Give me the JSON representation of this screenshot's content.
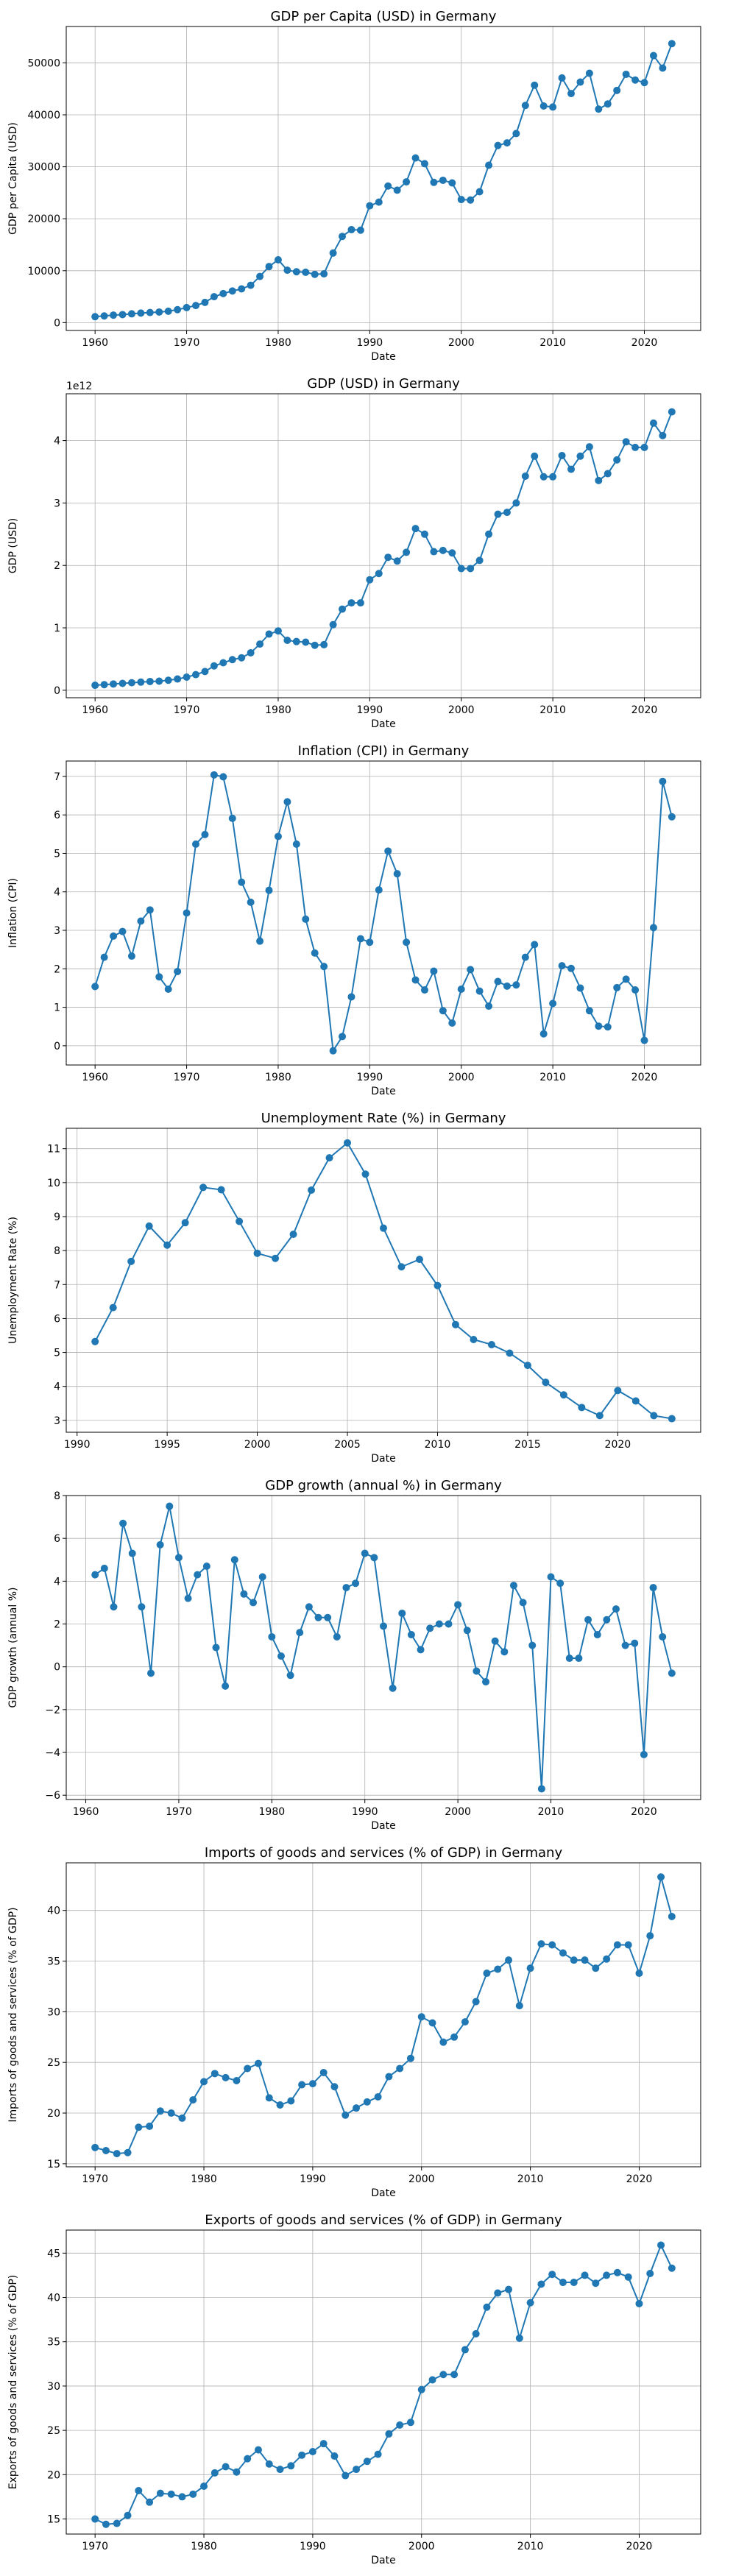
{
  "colors": {
    "series": "#1f77b4"
  },
  "chart_data": [
    {
      "type": "line",
      "title": "GDP per Capita (USD) in Germany",
      "xlabel": "Date",
      "ylabel": "GDP per Capita (USD)",
      "grid": true,
      "xlim": [
        1956.85,
        2026.15
      ],
      "ylim": [
        -1500,
        57000
      ],
      "xticks": [
        "1960",
        "1970",
        "1980",
        "1990",
        "2000",
        "2010",
        "2020"
      ],
      "yticks": [
        "0",
        "10000",
        "20000",
        "30000",
        "40000",
        "50000"
      ],
      "x": [
        1960,
        1961,
        1962,
        1963,
        1964,
        1965,
        1966,
        1967,
        1968,
        1969,
        1970,
        1971,
        1972,
        1973,
        1974,
        1975,
        1976,
        1977,
        1978,
        1979,
        1980,
        1981,
        1982,
        1983,
        1984,
        1985,
        1986,
        1987,
        1988,
        1989,
        1990,
        1991,
        1992,
        1993,
        1994,
        1995,
        1996,
        1997,
        1998,
        1999,
        2000,
        2001,
        2002,
        2003,
        2004,
        2005,
        2006,
        2007,
        2008,
        2009,
        2010,
        2011,
        2012,
        2013,
        2014,
        2015,
        2016,
        2017,
        2018,
        2019,
        2020,
        2021,
        2022,
        2023
      ],
      "series": [
        {
          "values": [
            1150,
            1300,
            1450,
            1550,
            1700,
            1850,
            1950,
            2050,
            2200,
            2500,
            2900,
            3300,
            3900,
            5000,
            5600,
            6100,
            6500,
            7200,
            8900,
            10800,
            12100,
            10100,
            9800,
            9700,
            9300,
            9400,
            13400,
            16600,
            17900,
            17800,
            22500,
            23200,
            26300,
            25500,
            27100,
            31700,
            30600,
            27000,
            27400,
            26900,
            23700,
            23600,
            25200,
            30300,
            34100,
            34600,
            36400,
            41800,
            45700,
            41700,
            41500,
            47100,
            44100,
            46300,
            48000,
            41100,
            42100,
            44700,
            47800,
            46700,
            46200,
            51400,
            49000,
            53700
          ]
        }
      ]
    },
    {
      "type": "line",
      "title": "GDP (USD) in Germany",
      "xlabel": "Date",
      "ylabel": "GDP (USD)",
      "exponent_label": "1e12",
      "grid": true,
      "xlim": [
        1956.85,
        2026.15
      ],
      "ylim": [
        -0.12,
        4.75
      ],
      "xticks": [
        "1960",
        "1970",
        "1980",
        "1990",
        "2000",
        "2010",
        "2020"
      ],
      "yticks": [
        "0",
        "1",
        "2",
        "3",
        "4"
      ],
      "x": [
        1960,
        1961,
        1962,
        1963,
        1964,
        1965,
        1966,
        1967,
        1968,
        1969,
        1970,
        1971,
        1972,
        1973,
        1974,
        1975,
        1976,
        1977,
        1978,
        1979,
        1980,
        1981,
        1982,
        1983,
        1984,
        1985,
        1986,
        1987,
        1988,
        1989,
        1990,
        1991,
        1992,
        1993,
        1994,
        1995,
        1996,
        1997,
        1998,
        1999,
        2000,
        2001,
        2002,
        2003,
        2004,
        2005,
        2006,
        2007,
        2008,
        2009,
        2010,
        2011,
        2012,
        2013,
        2014,
        2015,
        2016,
        2017,
        2018,
        2019,
        2020,
        2021,
        2022,
        2023
      ],
      "series": [
        {
          "values": [
            0.08,
            0.09,
            0.1,
            0.11,
            0.12,
            0.13,
            0.14,
            0.145,
            0.16,
            0.18,
            0.21,
            0.25,
            0.3,
            0.39,
            0.44,
            0.49,
            0.52,
            0.6,
            0.74,
            0.9,
            0.95,
            0.8,
            0.78,
            0.77,
            0.72,
            0.73,
            1.05,
            1.3,
            1.4,
            1.4,
            1.77,
            1.87,
            2.13,
            2.07,
            2.21,
            2.59,
            2.5,
            2.22,
            2.24,
            2.2,
            1.95,
            1.95,
            2.08,
            2.5,
            2.82,
            2.85,
            3.0,
            3.43,
            3.75,
            3.42,
            3.42,
            3.76,
            3.54,
            3.75,
            3.9,
            3.36,
            3.47,
            3.69,
            3.98,
            3.89,
            3.89,
            4.28,
            4.08,
            4.46
          ]
        }
      ]
    },
    {
      "type": "line",
      "title": "Inflation (CPI) in Germany",
      "xlabel": "Date",
      "ylabel": "Inflation (CPI)",
      "grid": true,
      "xlim": [
        1956.85,
        2026.15
      ],
      "ylim": [
        -0.5,
        7.4
      ],
      "xticks": [
        "1960",
        "1970",
        "1980",
        "1990",
        "2000",
        "2010",
        "2020"
      ],
      "yticks": [
        "0",
        "1",
        "2",
        "3",
        "4",
        "5",
        "6",
        "7"
      ],
      "x": [
        1960,
        1961,
        1962,
        1963,
        1964,
        1965,
        1966,
        1967,
        1968,
        1969,
        1970,
        1971,
        1972,
        1973,
        1974,
        1975,
        1976,
        1977,
        1978,
        1979,
        1980,
        1981,
        1982,
        1983,
        1984,
        1985,
        1986,
        1987,
        1988,
        1989,
        1990,
        1991,
        1992,
        1993,
        1994,
        1995,
        1996,
        1997,
        1998,
        1999,
        2000,
        2001,
        2002,
        2003,
        2004,
        2005,
        2006,
        2007,
        2008,
        2009,
        2010,
        2011,
        2012,
        2013,
        2014,
        2015,
        2016,
        2017,
        2018,
        2019,
        2020,
        2021,
        2022,
        2023
      ],
      "series": [
        {
          "values": [
            1.54,
            2.3,
            2.85,
            2.97,
            2.33,
            3.24,
            3.53,
            1.79,
            1.47,
            1.93,
            3.45,
            5.24,
            5.49,
            7.04,
            6.99,
            5.91,
            4.25,
            3.73,
            2.72,
            4.04,
            5.44,
            6.34,
            5.24,
            3.29,
            2.41,
            2.06,
            -0.13,
            0.24,
            1.27,
            2.78,
            2.69,
            4.05,
            5.06,
            4.47,
            2.69,
            1.71,
            1.45,
            1.94,
            0.91,
            0.59,
            1.47,
            1.98,
            1.42,
            1.03,
            1.67,
            1.55,
            1.58,
            2.3,
            2.63,
            0.31,
            1.1,
            2.08,
            2.01,
            1.5,
            0.91,
            0.51,
            0.49,
            1.51,
            1.73,
            1.45,
            0.14,
            3.07,
            6.87,
            5.95
          ]
        }
      ]
    },
    {
      "type": "line",
      "title": "Unemployment Rate (%) in Germany",
      "xlabel": "Date",
      "ylabel": "Unemployment Rate (%)",
      "grid": true,
      "xlim": [
        1989.4,
        2024.6
      ],
      "ylim": [
        2.65,
        11.6
      ],
      "xticks": [
        "1990",
        "1995",
        "2000",
        "2005",
        "2010",
        "2015",
        "2020"
      ],
      "yticks": [
        "3",
        "4",
        "5",
        "6",
        "7",
        "8",
        "9",
        "10",
        "11"
      ],
      "x": [
        1991,
        1992,
        1993,
        1994,
        1995,
        1996,
        1997,
        1998,
        1999,
        2000,
        2001,
        2002,
        2003,
        2004,
        2005,
        2006,
        2007,
        2008,
        2009,
        2010,
        2011,
        2012,
        2013,
        2014,
        2015,
        2016,
        2017,
        2018,
        2019,
        2020,
        2021,
        2022,
        2023
      ],
      "series": [
        {
          "values": [
            5.32,
            6.32,
            7.68,
            8.72,
            8.16,
            8.82,
            9.86,
            9.79,
            8.86,
            7.92,
            7.77,
            8.48,
            9.78,
            10.73,
            11.17,
            10.25,
            8.66,
            7.52,
            7.74,
            6.97,
            5.82,
            5.38,
            5.23,
            4.98,
            4.62,
            4.12,
            3.75,
            3.38,
            3.14,
            3.88,
            3.57,
            3.14,
            3.05
          ]
        }
      ]
    },
    {
      "type": "line",
      "title": "GDP growth (annual %) in Germany",
      "xlabel": "Date",
      "ylabel": "GDP growth (annual %)",
      "grid": true,
      "xlim": [
        1957.9,
        2026.1
      ],
      "ylim": [
        -6.2,
        8.0
      ],
      "xticks": [
        "1960",
        "1970",
        "1980",
        "1990",
        "2000",
        "2010",
        "2020"
      ],
      "yticks": [
        "−6",
        "−4",
        "−2",
        "0",
        "2",
        "4",
        "6",
        "8"
      ],
      "x": [
        1961,
        1962,
        1963,
        1964,
        1965,
        1966,
        1967,
        1968,
        1969,
        1970,
        1971,
        1972,
        1973,
        1974,
        1975,
        1976,
        1977,
        1978,
        1979,
        1980,
        1981,
        1982,
        1983,
        1984,
        1985,
        1986,
        1987,
        1988,
        1989,
        1990,
        1991,
        1992,
        1993,
        1994,
        1995,
        1996,
        1997,
        1998,
        1999,
        2000,
        2001,
        2002,
        2003,
        2004,
        2005,
        2006,
        2007,
        2008,
        2009,
        2010,
        2011,
        2012,
        2013,
        2014,
        2015,
        2016,
        2017,
        2018,
        2019,
        2020,
        2021,
        2022,
        2023
      ],
      "series": [
        {
          "values": [
            4.3,
            4.6,
            2.8,
            6.7,
            5.3,
            2.8,
            -0.3,
            5.7,
            7.5,
            5.1,
            3.2,
            4.3,
            4.7,
            0.9,
            -0.9,
            5.0,
            3.4,
            3.0,
            4.2,
            1.4,
            0.5,
            -0.4,
            1.6,
            2.8,
            2.3,
            2.3,
            1.4,
            3.7,
            3.9,
            5.3,
            5.1,
            1.9,
            -1.0,
            2.5,
            1.5,
            0.8,
            1.8,
            2.0,
            2.0,
            2.9,
            1.7,
            -0.2,
            -0.7,
            1.2,
            0.7,
            3.8,
            3.0,
            1.0,
            -5.7,
            4.2,
            3.9,
            0.4,
            0.4,
            2.2,
            1.5,
            2.2,
            2.7,
            1.0,
            1.1,
            -4.1,
            3.7,
            1.4,
            -0.3
          ]
        }
      ]
    },
    {
      "type": "line",
      "title": "Imports of goods and services (% of GDP) in Germany",
      "xlabel": "Date",
      "ylabel": "Imports of goods and services (% of GDP)",
      "grid": true,
      "xlim": [
        1967.35,
        2025.65
      ],
      "ylim": [
        14.7,
        44.7
      ],
      "xticks": [
        "1970",
        "1980",
        "1990",
        "2000",
        "2010",
        "2020"
      ],
      "yticks": [
        "15",
        "20",
        "25",
        "30",
        "35",
        "40"
      ],
      "x": [
        1970,
        1971,
        1972,
        1973,
        1974,
        1975,
        1976,
        1977,
        1978,
        1979,
        1980,
        1981,
        1982,
        1983,
        1984,
        1985,
        1986,
        1987,
        1988,
        1989,
        1990,
        1991,
        1992,
        1993,
        1994,
        1995,
        1996,
        1997,
        1998,
        1999,
        2000,
        2001,
        2002,
        2003,
        2004,
        2005,
        2006,
        2007,
        2008,
        2009,
        2010,
        2011,
        2012,
        2013,
        2014,
        2015,
        2016,
        2017,
        2018,
        2019,
        2020,
        2021,
        2022,
        2023
      ],
      "series": [
        {
          "values": [
            16.6,
            16.3,
            16.0,
            16.1,
            18.6,
            18.7,
            20.2,
            20.0,
            19.5,
            21.3,
            23.1,
            23.9,
            23.5,
            23.2,
            24.4,
            24.9,
            21.5,
            20.8,
            21.2,
            22.8,
            22.9,
            24.0,
            22.6,
            19.8,
            20.5,
            21.1,
            21.6,
            23.6,
            24.4,
            25.4,
            29.5,
            28.9,
            27.0,
            27.5,
            29.0,
            31.0,
            33.8,
            34.2,
            35.1,
            30.6,
            34.3,
            36.7,
            36.6,
            35.8,
            35.1,
            35.1,
            34.3,
            35.2,
            36.6,
            36.6,
            33.8,
            37.5,
            43.3,
            39.4
          ]
        }
      ]
    },
    {
      "type": "line",
      "title": "Exports of goods and services (% of GDP) in Germany",
      "xlabel": "Date",
      "ylabel": "Exports of goods and services (% of GDP)",
      "grid": true,
      "xlim": [
        1967.35,
        2025.65
      ],
      "ylim": [
        13.3,
        47.6
      ],
      "xticks": [
        "1970",
        "1980",
        "1990",
        "2000",
        "2010",
        "2020"
      ],
      "yticks": [
        "15",
        "20",
        "25",
        "30",
        "35",
        "40",
        "45"
      ],
      "x": [
        1970,
        1971,
        1972,
        1973,
        1974,
        1975,
        1976,
        1977,
        1978,
        1979,
        1980,
        1981,
        1982,
        1983,
        1984,
        1985,
        1986,
        1987,
        1988,
        1989,
        1990,
        1991,
        1992,
        1993,
        1994,
        1995,
        1996,
        1997,
        1998,
        1999,
        2000,
        2001,
        2002,
        2003,
        2004,
        2005,
        2006,
        2007,
        2008,
        2009,
        2010,
        2011,
        2012,
        2013,
        2014,
        2015,
        2016,
        2017,
        2018,
        2019,
        2020,
        2021,
        2022,
        2023
      ],
      "series": [
        {
          "values": [
            15.0,
            14.4,
            14.5,
            15.4,
            18.2,
            16.9,
            17.9,
            17.8,
            17.5,
            17.8,
            18.7,
            20.2,
            20.9,
            20.3,
            21.8,
            22.8,
            21.2,
            20.6,
            21.0,
            22.2,
            22.6,
            23.5,
            22.1,
            19.9,
            20.6,
            21.5,
            22.3,
            24.6,
            25.6,
            25.9,
            29.6,
            30.7,
            31.3,
            31.3,
            34.1,
            35.9,
            38.9,
            40.5,
            40.9,
            35.4,
            39.4,
            41.5,
            42.6,
            41.7,
            41.7,
            42.5,
            41.6,
            42.5,
            42.8,
            42.3,
            39.3,
            42.7,
            45.9,
            43.3
          ]
        }
      ]
    }
  ]
}
